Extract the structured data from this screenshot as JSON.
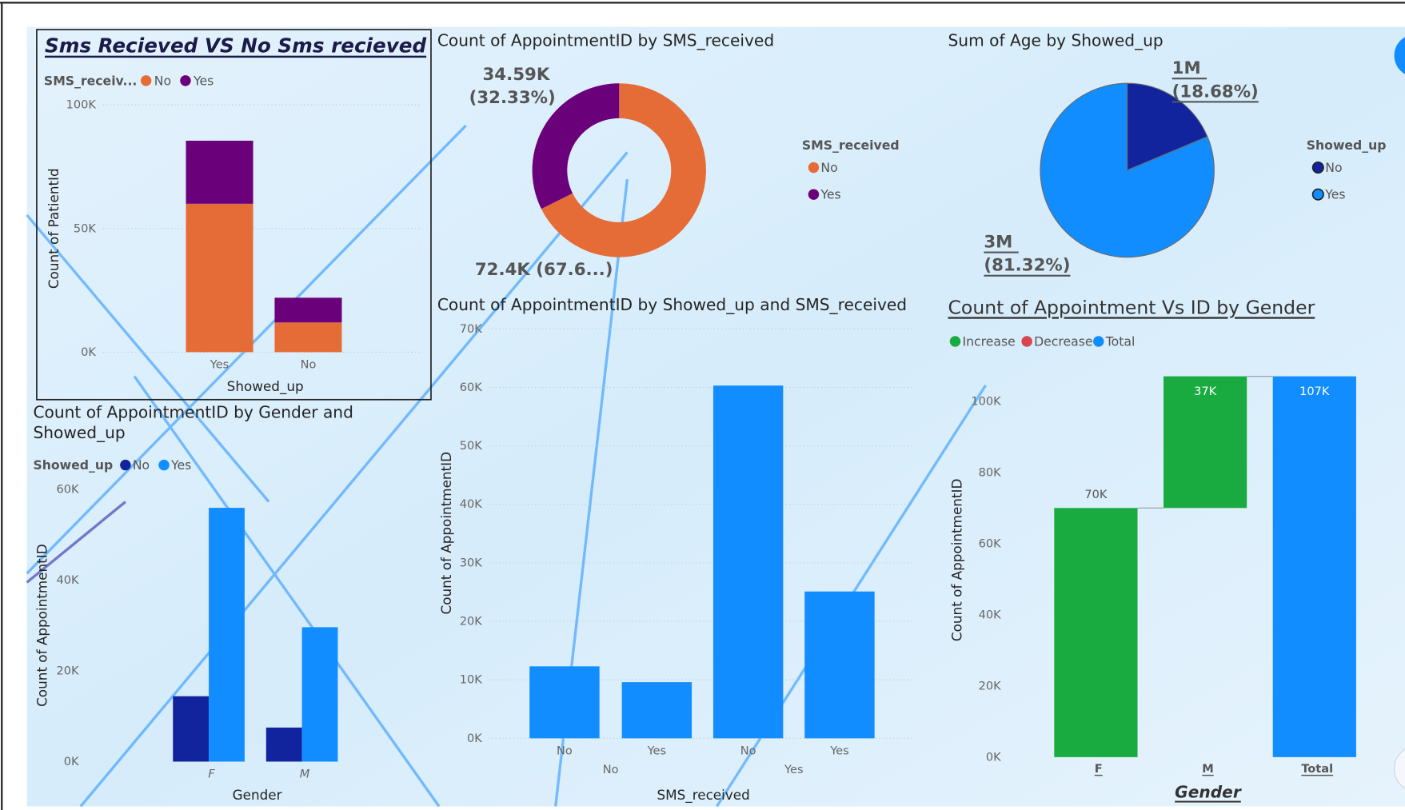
{
  "chart_data": [
    {
      "type": "stacked_bar",
      "title": "Sms Recieved VS No Sms recieved",
      "legend_title": "SMS_receiv...",
      "x_label": "Showed_up",
      "y_label": "Count of PatientId",
      "categories": [
        "Yes",
        "No"
      ],
      "series": [
        {
          "name": "No",
          "color": "#E66C37",
          "values": [
            60000,
            12000
          ]
        },
        {
          "name": "Yes",
          "color": "#6B007B",
          "values": [
            25500,
            10000
          ]
        }
      ],
      "ylim": [
        0,
        100000
      ],
      "yticks": [
        {
          "value": 0,
          "label": "0K"
        },
        {
          "value": 50000,
          "label": "50K"
        },
        {
          "value": 100000,
          "label": "100K"
        }
      ],
      "grid": true
    },
    {
      "type": "donut",
      "title": "Count of AppointmentID by SMS_received",
      "legend_title": "SMS_received",
      "categories": [
        "No",
        "Yes"
      ],
      "values": [
        72400,
        34590
      ],
      "value_labels": [
        "72.4K (67.6...)",
        "34.59K (32.33%)"
      ],
      "colors": [
        "#E66C37",
        "#6B007B"
      ]
    },
    {
      "type": "pie",
      "title": "Sum of Age by Showed_up",
      "legend_title": "Showed_up",
      "categories": [
        "No",
        "Yes"
      ],
      "values": [
        766000,
        3335000
      ],
      "value_labels": [
        "1M (18.68%)",
        "3M (81.32%)"
      ],
      "colors": [
        "#12239E",
        "#118DFF"
      ]
    },
    {
      "type": "grouped_bar",
      "title": "Count of AppointmentID by Gender and Showed_up",
      "legend_title": "Showed_up",
      "x_label": "Gender",
      "y_label": "Count of AppointmentID",
      "categories": [
        "F",
        "M"
      ],
      "series": [
        {
          "name": "No",
          "color": "#12239E",
          "values": [
            14400,
            7500
          ]
        },
        {
          "name": "Yes",
          "color": "#118DFF",
          "values": [
            55900,
            29600
          ]
        }
      ],
      "ylim": [
        0,
        60000
      ],
      "yticks": [
        {
          "value": 0,
          "label": "0K"
        },
        {
          "value": 20000,
          "label": "20K"
        },
        {
          "value": 40000,
          "label": "40K"
        },
        {
          "value": 60000,
          "label": "60K"
        }
      ],
      "grid": false
    },
    {
      "type": "bar",
      "title": "Count of AppointmentID by Showed_up and SMS_received",
      "x_label": "SMS_received",
      "y_label": "Count of AppointmentID",
      "categories": [
        "No",
        "Yes",
        "No",
        "Yes"
      ],
      "category_groups": [
        "No",
        "Yes"
      ],
      "values": [
        12300,
        9600,
        60300,
        25100
      ],
      "color": "#118DFF",
      "ylim": [
        0,
        70000
      ],
      "yticks": [
        {
          "value": 0,
          "label": "0K"
        },
        {
          "value": 10000,
          "label": "10K"
        },
        {
          "value": 20000,
          "label": "20K"
        },
        {
          "value": 30000,
          "label": "30K"
        },
        {
          "value": 40000,
          "label": "40K"
        },
        {
          "value": 50000,
          "label": "50K"
        },
        {
          "value": 60000,
          "label": "60K"
        },
        {
          "value": 70000,
          "label": "70K"
        }
      ],
      "grid": true
    },
    {
      "type": "waterfall",
      "title": "Count of Appointment Vs ID by Gender",
      "legend": [
        {
          "name": "Increase",
          "color": "#1AAB40"
        },
        {
          "name": "Decrease",
          "color": "#D64550"
        },
        {
          "name": "Total",
          "color": "#118DFF"
        }
      ],
      "x_label": "Gender",
      "y_label": "Count of AppointmentID",
      "categories": [
        "F",
        "M",
        "Total"
      ],
      "values": [
        70000,
        37000,
        107000
      ],
      "value_labels": [
        "70K",
        "37K",
        "107K"
      ],
      "totals": [
        false,
        false,
        true
      ],
      "ylim": [
        0,
        107000
      ],
      "yticks": [
        {
          "value": 0,
          "label": "0K"
        },
        {
          "value": 20000,
          "label": "20K"
        },
        {
          "value": 40000,
          "label": "40K"
        },
        {
          "value": 60000,
          "label": "60K"
        },
        {
          "value": 80000,
          "label": "80K"
        },
        {
          "value": 100000,
          "label": "100K"
        }
      ],
      "grid": false
    }
  ]
}
